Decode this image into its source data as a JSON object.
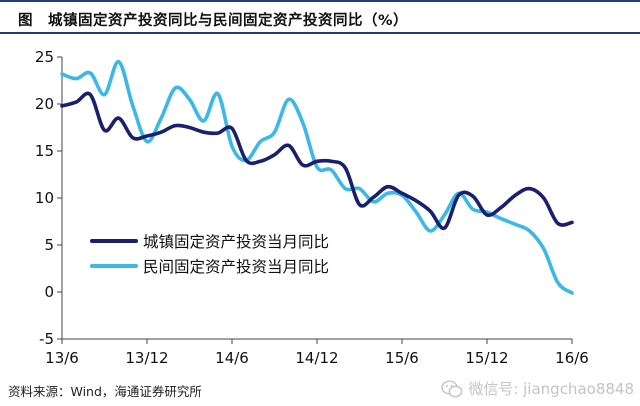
{
  "header": {
    "title": "图　城镇固定资产投资同比与民间固定资产投资同比（%）"
  },
  "footer": {
    "source": "资料来源：Wind，海通证券研究所",
    "watermark": "微信号: jiangchao8848"
  },
  "colors": {
    "series_urban": "#1a1f6e",
    "series_private": "#3cb8e6",
    "title_rule": "#1f3b78"
  },
  "chart_data": {
    "type": "line",
    "title": "城镇固定资产投资同比与民间固定资产投资同比（%）",
    "xlabel": "",
    "ylabel": "",
    "ylim": [
      -5,
      25
    ],
    "yticks": [
      25,
      20,
      15,
      10,
      5,
      0,
      -5
    ],
    "x": [
      "2013-06",
      "2013-07",
      "2013-08",
      "2013-09",
      "2013-10",
      "2013-11",
      "2013-12",
      "2014-01",
      "2014-02",
      "2014-03",
      "2014-04",
      "2014-05",
      "2014-06",
      "2014-07",
      "2014-08",
      "2014-09",
      "2014-10",
      "2014-11",
      "2014-12",
      "2015-01",
      "2015-02",
      "2015-03",
      "2015-04",
      "2015-05",
      "2015-06",
      "2015-07",
      "2015-08",
      "2015-09",
      "2015-10",
      "2015-11",
      "2015-12",
      "2016-01",
      "2016-02",
      "2016-03",
      "2016-04",
      "2016-05",
      "2016-06"
    ],
    "xtick_labels": [
      "13/6",
      "13/12",
      "14/6",
      "14/12",
      "15/6",
      "15/12",
      "16/6"
    ],
    "xtick_months": [
      "2013-06",
      "2013-12",
      "2014-06",
      "2014-12",
      "2015-06",
      "2015-12",
      "2016-06"
    ],
    "grid": false,
    "legend_position": "lower-left",
    "series": [
      {
        "name": "城镇固定资产投资当月同比",
        "values": [
          19.8,
          20.2,
          21.0,
          17.2,
          18.5,
          16.4,
          16.6,
          17.0,
          17.7,
          17.5,
          17.0,
          16.9,
          17.4,
          14.0,
          13.9,
          14.6,
          15.6,
          13.5,
          13.9,
          13.9,
          13.2,
          9.3,
          10.1,
          11.2,
          10.5,
          9.7,
          8.6,
          6.8,
          10.3,
          10.2,
          8.2,
          9.0,
          10.3,
          11.0,
          10.0,
          7.3,
          7.4
        ]
      },
      {
        "name": "民间固定资产投资当月同比",
        "values": [
          23.2,
          22.7,
          23.3,
          21.0,
          24.5,
          19.8,
          16.0,
          18.5,
          21.7,
          20.5,
          18.2,
          21.1,
          15.5,
          14.0,
          16.0,
          17.0,
          20.5,
          18.0,
          13.3,
          13.0,
          11.0,
          11.0,
          9.6,
          10.5,
          10.3,
          8.5,
          6.5,
          8.2,
          10.5,
          8.8,
          8.5,
          7.8,
          7.2,
          6.5,
          4.6,
          1.0,
          -0.1
        ]
      }
    ]
  }
}
